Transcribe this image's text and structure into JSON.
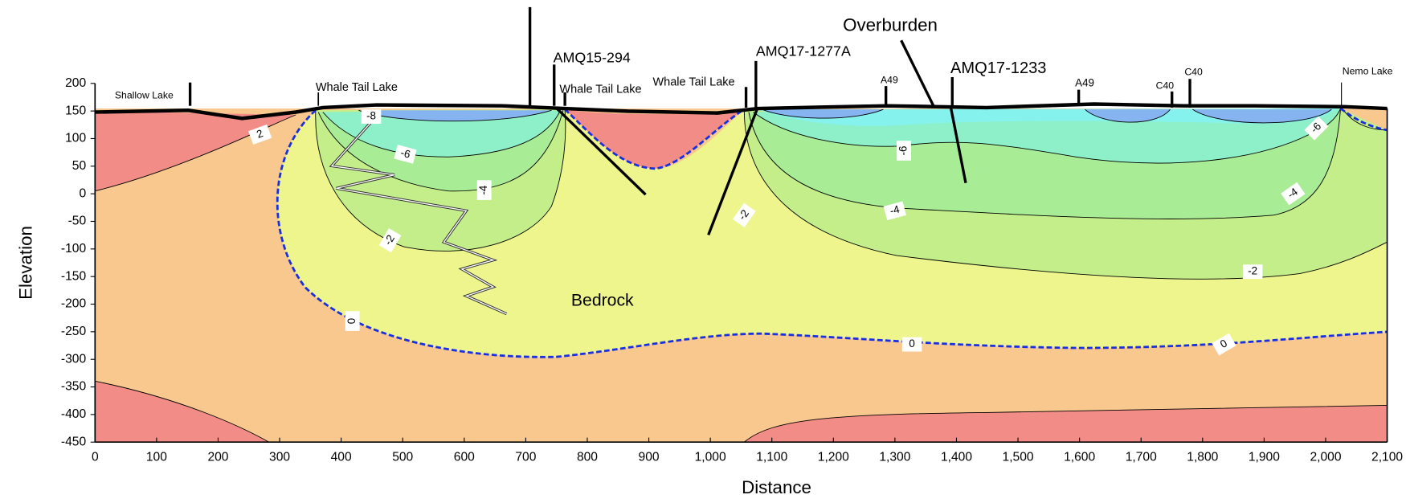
{
  "chart_data": {
    "type": "contour",
    "x_label": "Distance",
    "y_label": "Elevation",
    "xlim": [
      0,
      2100
    ],
    "xticks": [
      0,
      100,
      200,
      300,
      400,
      500,
      600,
      700,
      800,
      900,
      {
        "value": 1000,
        "label": "1,000"
      },
      {
        "value": 1100,
        "label": "1,100"
      },
      {
        "value": 1200,
        "label": "1,200"
      },
      {
        "value": 1300,
        "label": "1,300"
      },
      {
        "value": 1400,
        "label": "1,400"
      },
      {
        "value": 1500,
        "label": "1,500"
      },
      {
        "value": 1600,
        "label": "1,600"
      },
      {
        "value": 1700,
        "label": "1,700"
      },
      {
        "value": 1800,
        "label": "1,800"
      },
      {
        "value": 1900,
        "label": "1,900"
      },
      {
        "value": 2000,
        "label": "2,000"
      },
      {
        "value": 2100,
        "label": "2,100"
      }
    ],
    "ylim": [
      -450,
      200
    ],
    "yticks": [
      200,
      150,
      100,
      50,
      0,
      -50,
      -100,
      -150,
      -200,
      -250,
      -300,
      -350,
      -400,
      -450
    ],
    "contour_labels": [
      2,
      -8,
      -6,
      -4,
      -2,
      0,
      -2,
      -6,
      -4,
      -2,
      -4,
      -6,
      0,
      0
    ],
    "annotations": [
      "Shallow Lake",
      "Whale Tail Lake",
      "AMQ15-294",
      "Whale Tail Lake",
      "Whale Tail Lake",
      "AMQ17-1277A",
      "Overburden",
      "AMQ17-1233",
      "A49",
      "A49",
      "C40",
      "C40",
      "Nemo Lake",
      "Bedrock"
    ]
  }
}
